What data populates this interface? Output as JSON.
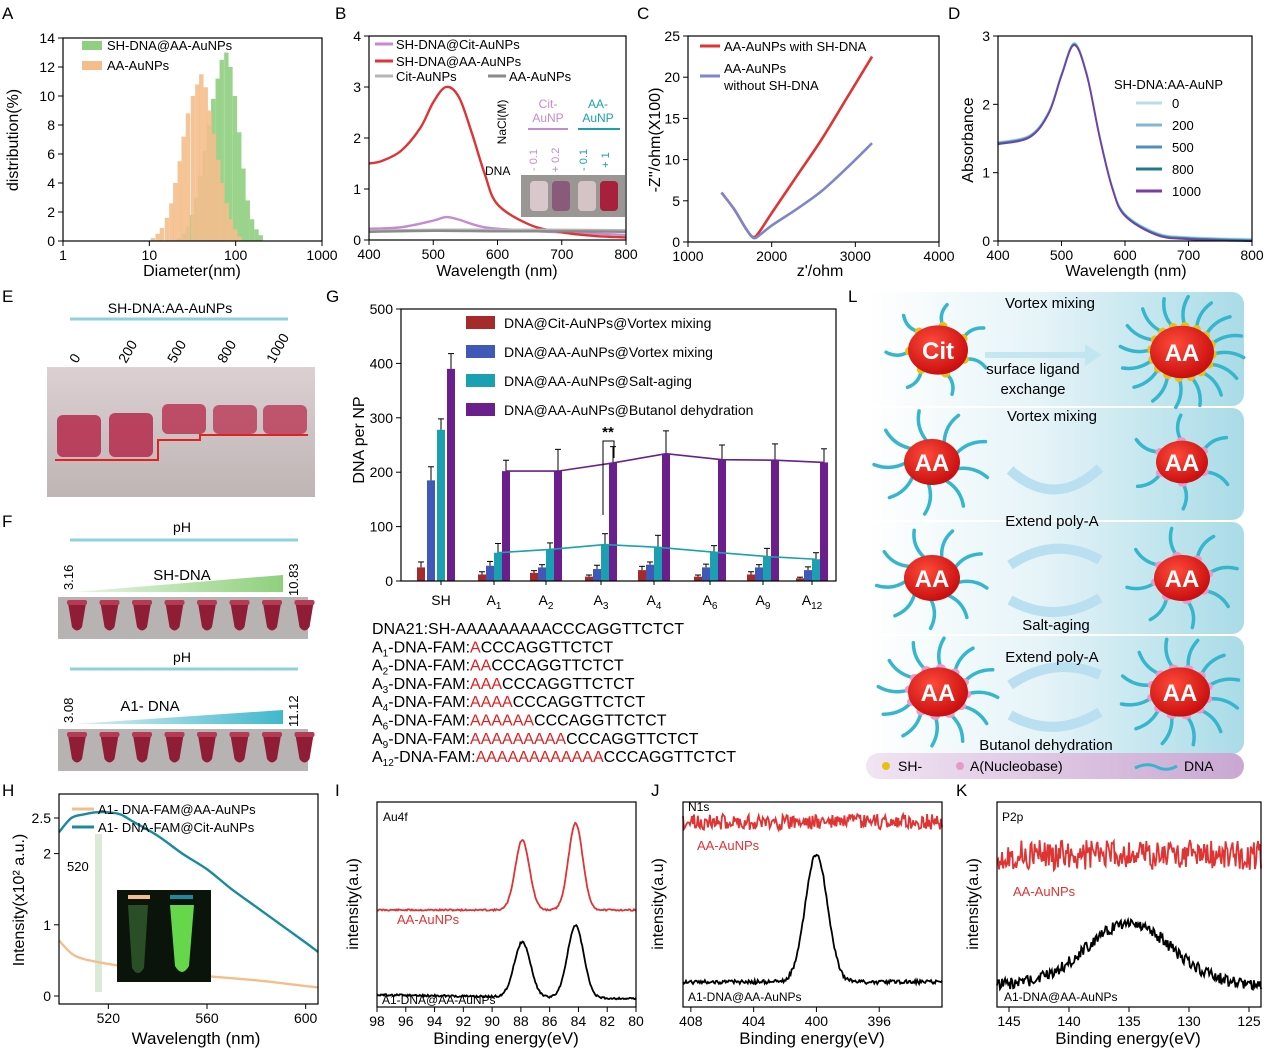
{
  "panels": {
    "A": {
      "letter": "A",
      "ylabel": "distribution(%)",
      "xlabel": "Diameter(nm)",
      "yticks": [
        "0",
        "2",
        "4",
        "6",
        "8",
        "10",
        "12",
        "14"
      ],
      "xticks": [
        "1",
        "10",
        "100",
        "1000"
      ],
      "legend": [
        "SH-DNA@AA-AuNPs",
        "AA-AuNPs"
      ]
    },
    "B": {
      "letter": "B",
      "ylabel": "",
      "xlabel": "Wavelength (nm)",
      "yticks": [
        "0",
        "1",
        "2",
        "3",
        "4"
      ],
      "xticks": [
        "400",
        "500",
        "600",
        "700",
        "800"
      ],
      "legend": [
        "SH-DNA@Cit-AuNPs",
        "SH-DNA@AA-AuNPs",
        "Cit-AuNPs",
        "AA-AuNPs"
      ],
      "inset": {
        "nacl_label": "NaCl(M)",
        "dna_label": "DNA",
        "group1": "Cit-AuNP",
        "group2": "AA-AuNP",
        "nacl_values": [
          "0.1",
          "0.2",
          "0.1",
          "1"
        ],
        "dna_values": [
          "-",
          "+",
          "-",
          "+"
        ]
      }
    },
    "C": {
      "letter": "C",
      "ylabel": "-Z''/ohm(X100)",
      "xlabel": "z'/ohm",
      "yticks": [
        "0",
        "5",
        "10",
        "15",
        "20",
        "25"
      ],
      "xticks": [
        "1000",
        "2000",
        "3000",
        "4000"
      ],
      "legend": [
        "AA-AuNPs with SH-DNA",
        "AA-AuNPs",
        "without SH-DNA"
      ]
    },
    "D": {
      "letter": "D",
      "ylabel": "Absorbance",
      "xlabel": "Wavelength (nm)",
      "yticks": [
        "0",
        "1",
        "2",
        "3"
      ],
      "xticks": [
        "400",
        "500",
        "600",
        "700",
        "800"
      ],
      "legend_title": "SH-DNA:AA-AuNP",
      "legend": [
        "0",
        "200",
        "500",
        "800",
        "1000"
      ]
    },
    "E": {
      "letter": "E",
      "title": "SH-DNA:AA-AuNPs",
      "lanes": [
        "0",
        "200",
        "500",
        "800",
        "1000"
      ]
    },
    "F": {
      "letter": "F",
      "ph1": "pH",
      "row1_label": "SH-DNA",
      "row1_min": "3.16",
      "row1_max": "10.83",
      "ph2": "pH",
      "row2_label": "A1- DNA",
      "row2_min": "3.08",
      "row2_max": "11.12"
    },
    "G": {
      "letter": "G",
      "ylabel": "DNA per NP",
      "sig": "**",
      "legend": [
        "DNA@Cit-AuNPs@Vortex mixing",
        "DNA@AA-AuNPs@Vortex mixing",
        "DNA@AA-AuNPs@Salt-aging",
        "DNA@AA-AuNPs@Butanol dehydration"
      ],
      "yticks": [
        "0",
        "100",
        "200",
        "300",
        "400",
        "500"
      ],
      "sequences": [
        {
          "prefix": "DNA21:SH-",
          "red": "",
          "rest": "AAAAAAAAACCCAGGTTCTCT"
        },
        {
          "prefix": "A1-DNA-FAM:",
          "red": "A",
          "rest": "CCCAGGTTCTCT"
        },
        {
          "prefix": "A2-DNA-FAM:",
          "red": "AA",
          "rest": "CCCAGGTTCTCT"
        },
        {
          "prefix": "A3-DNA-FAM:",
          "red": "AAA",
          "rest": "CCCAGGTTCTCT"
        },
        {
          "prefix": "A4-DNA-FAM:",
          "red": "AAAA",
          "rest": "CCCAGGTTCTCT"
        },
        {
          "prefix": "A6-DNA-FAM:",
          "red": "AAAAAA",
          "rest": "CCCAGGTTCTCT"
        },
        {
          "prefix": "A9-DNA-FAM:",
          "red": "AAAAAAAAA",
          "rest": "CCCAGGTTCTCT"
        },
        {
          "prefix": "A12-DNA-FAM:",
          "red": "AAAAAAAAAAAA",
          "rest": "CCCAGGTTCTCT"
        }
      ]
    },
    "L": {
      "letter": "L",
      "row1_top": "Vortex mixing",
      "row1_mid": "surface ligand",
      "row1_mid2": "exchange",
      "row2_top": "Vortex mixing",
      "row3_top": "Extend poly-A",
      "row3_bottom": "Salt-aging",
      "row4_top": "Extend poly-A",
      "row4_bottom": "Butanol dehydration",
      "cit": "Cit",
      "aa": "AA",
      "legend_sh": "SH-",
      "legend_a": "A(Nucleobase)",
      "legend_dna": "DNA"
    },
    "H": {
      "letter": "H",
      "ylabel": "Intensity(x10² a.u.)",
      "xlabel": "Wavelength (nm)",
      "yticks": [
        "0",
        "1",
        "2",
        "2.5"
      ],
      "xticks": [
        "520",
        "560",
        "600"
      ],
      "legend": [
        "A1- DNA-FAM@AA-AuNPs",
        "A1- DNA-FAM@Cit-AuNPs"
      ],
      "marker": "520"
    },
    "I": {
      "letter": "I",
      "ylabel": "intensity(a.u)",
      "xlabel": "Binding energy(eV)",
      "xticks": [
        "98",
        "96",
        "94",
        "92",
        "90",
        "88",
        "86",
        "84",
        "82",
        "80"
      ],
      "tag": "Au4f",
      "label_top": "AA-AuNPs",
      "label_bottom": "A1-DNA@AA-AuNPs"
    },
    "J": {
      "letter": "J",
      "ylabel": "intensity(a.u)",
      "xlabel": "Binding energy(eV)",
      "xticks": [
        "408",
        "404",
        "400",
        "396"
      ],
      "tag": "N1s",
      "label_top": "AA-AuNPs",
      "label_bottom": "A1-DNA@AA-AuNPs"
    },
    "K": {
      "letter": "K",
      "ylabel": "intensity(a.u)",
      "xlabel": "Binding energy(eV)",
      "xticks": [
        "145",
        "140",
        "135",
        "130",
        "125"
      ],
      "tag": "P2p",
      "label_top": "AA-AuNPs",
      "label_bottom": "A1-DNA@AA-AuNPs"
    }
  },
  "colors": {
    "green": "#8fcf7f",
    "orange": "#f4be8c",
    "purple": "#c58ad0",
    "red": "#e03333",
    "gray": "#b5b5b5",
    "darkgray": "#8a8a8a",
    "blue_line": "#7d86c8",
    "teal": "#1aa0b0",
    "darkred": "#a52a2a",
    "navy": "#4058b8",
    "violet": "#6a1f8c"
  },
  "chart_data": [
    {
      "type": "bar",
      "panel": "A",
      "xlabel": "Diameter(nm)",
      "ylabel": "distribution(%)",
      "xscale": "log",
      "xlim": [
        1,
        1000
      ],
      "ylim": [
        0,
        14
      ],
      "series": [
        {
          "name": "SH-DNA@AA-AuNPs",
          "x": [
            22,
            25,
            28,
            31,
            35,
            39,
            44,
            49,
            55,
            62,
            69,
            78,
            87,
            98,
            110,
            123,
            138,
            155,
            174,
            195
          ],
          "values": [
            0.2,
            0.5,
            1.0,
            1.8,
            3.0,
            4.5,
            6.2,
            8.0,
            9.8,
            11.2,
            12.5,
            13.0,
            12.0,
            10.0,
            7.5,
            5.0,
            2.8,
            1.5,
            0.8,
            0.4
          ]
        },
        {
          "name": "AA-AuNPs",
          "x": [
            11,
            12.5,
            14,
            16,
            18,
            20,
            22.5,
            25,
            28,
            32,
            36,
            40,
            45,
            50,
            56,
            63,
            70,
            79,
            88,
            99,
            111
          ],
          "values": [
            0.2,
            0.5,
            0.9,
            1.6,
            2.6,
            4.0,
            5.5,
            7.2,
            8.8,
            10.0,
            10.8,
            11.5,
            10.6,
            9.0,
            7.4,
            5.6,
            4.0,
            2.6,
            1.5,
            0.8,
            0.3
          ]
        }
      ]
    },
    {
      "type": "line",
      "panel": "B",
      "xlabel": "Wavelength (nm)",
      "xlim": [
        400,
        800
      ],
      "ylim": [
        0,
        4
      ],
      "series": [
        {
          "name": "SH-DNA@Cit-AuNPs",
          "x": [
            400,
            450,
            500,
            520,
            540,
            580,
            650,
            700,
            800
          ],
          "values": [
            0.22,
            0.25,
            0.38,
            0.45,
            0.4,
            0.25,
            0.18,
            0.15,
            0.1
          ]
        },
        {
          "name": "SH-DNA@AA-AuNPs",
          "x": [
            400,
            420,
            450,
            480,
            500,
            520,
            540,
            560,
            580,
            600,
            650,
            700,
            750,
            800
          ],
          "values": [
            1.5,
            1.55,
            1.75,
            2.2,
            2.7,
            3.0,
            2.8,
            2.1,
            1.3,
            0.7,
            0.3,
            0.15,
            0.08,
            0.05
          ]
        },
        {
          "name": "Cit-AuNPs",
          "x": [
            400,
            500,
            600,
            700,
            800
          ],
          "values": [
            0.18,
            0.2,
            0.2,
            0.2,
            0.19
          ]
        },
        {
          "name": "AA-AuNPs",
          "x": [
            400,
            500,
            600,
            700,
            800
          ],
          "values": [
            0.16,
            0.18,
            0.17,
            0.17,
            0.16
          ]
        }
      ]
    },
    {
      "type": "line",
      "panel": "C",
      "xlabel": "z'/ohm",
      "ylabel": "-Z''/ohm(X100)",
      "xlim": [
        1000,
        4000
      ],
      "ylim": [
        0,
        25
      ],
      "series": [
        {
          "name": "AA-AuNPs with SH-DNA",
          "x": [
            1400,
            1550,
            1700,
            1780,
            1850,
            2000,
            2300,
            2600,
            2900,
            3200
          ],
          "values": [
            6,
            4,
            1.5,
            0.6,
            1.2,
            3.5,
            8,
            12.5,
            17.5,
            22.5
          ]
        },
        {
          "name": "AA-AuNPs without SH-DNA",
          "x": [
            1400,
            1550,
            1700,
            1780,
            1850,
            2000,
            2300,
            2600,
            2900,
            3200
          ],
          "values": [
            6,
            4,
            1.5,
            0.5,
            0.8,
            2,
            4,
            6.2,
            9,
            12
          ]
        }
      ]
    },
    {
      "type": "line",
      "panel": "D",
      "xlabel": "Wavelength (nm)",
      "ylabel": "Absorbance",
      "xlim": [
        400,
        800
      ],
      "ylim": [
        0,
        3
      ],
      "series": [
        {
          "name": "0",
          "x": [
            400,
            450,
            480,
            500,
            520,
            540,
            560,
            580,
            600,
            650,
            700,
            800
          ],
          "values": [
            1.45,
            1.55,
            1.9,
            2.45,
            2.9,
            2.45,
            1.55,
            0.8,
            0.4,
            0.12,
            0.06,
            0.03
          ]
        },
        {
          "name": "200",
          "x": [
            400,
            450,
            480,
            500,
            520,
            540,
            560,
            580,
            600,
            650,
            700,
            800
          ],
          "values": [
            1.45,
            1.55,
            1.9,
            2.45,
            2.9,
            2.45,
            1.55,
            0.8,
            0.4,
            0.12,
            0.06,
            0.03
          ]
        },
        {
          "name": "500",
          "x": [
            400,
            450,
            480,
            500,
            520,
            540,
            560,
            580,
            600,
            650,
            700,
            800
          ],
          "values": [
            1.45,
            1.55,
            1.9,
            2.45,
            2.9,
            2.45,
            1.55,
            0.8,
            0.4,
            0.12,
            0.06,
            0.03
          ]
        },
        {
          "name": "800",
          "x": [
            400,
            450,
            480,
            500,
            520,
            540,
            560,
            580,
            600,
            650,
            700,
            800
          ],
          "values": [
            1.45,
            1.55,
            1.9,
            2.45,
            2.9,
            2.45,
            1.55,
            0.8,
            0.4,
            0.12,
            0.06,
            0.03
          ]
        },
        {
          "name": "1000",
          "x": [
            400,
            450,
            480,
            500,
            520,
            540,
            560,
            580,
            600,
            650,
            700,
            800
          ],
          "values": [
            1.45,
            1.55,
            1.9,
            2.45,
            2.9,
            2.45,
            1.55,
            0.8,
            0.4,
            0.12,
            0.06,
            0.03
          ]
        }
      ]
    },
    {
      "type": "bar",
      "panel": "G",
      "ylabel": "DNA per NP",
      "ylim": [
        0,
        500
      ],
      "categories": [
        "SH",
        "A1",
        "A2",
        "A3",
        "A4",
        "A6",
        "A9",
        "A12"
      ],
      "series": [
        {
          "name": "DNA@Cit-AuNPs@Vortex mixing",
          "values": [
            25,
            12,
            15,
            8,
            20,
            8,
            12,
            5
          ],
          "errors": [
            10,
            5,
            4,
            3,
            7,
            3,
            5,
            2
          ]
        },
        {
          "name": "DNA@AA-AuNPs@Vortex mixing",
          "values": [
            185,
            28,
            25,
            22,
            30,
            25,
            25,
            20
          ],
          "errors": [
            25,
            8,
            5,
            7,
            5,
            6,
            5,
            6
          ]
        },
        {
          "name": "DNA@AA-AuNPs@Salt-aging",
          "values": [
            278,
            52,
            58,
            67,
            62,
            53,
            45,
            40
          ],
          "errors": [
            20,
            17,
            12,
            20,
            22,
            12,
            15,
            12
          ]
        },
        {
          "name": "DNA@AA-AuNPs@Butanol dehydration",
          "values": [
            390,
            202,
            202,
            217,
            234,
            223,
            222,
            218
          ],
          "errors": [
            28,
            20,
            40,
            30,
            42,
            27,
            30,
            25
          ]
        }
      ]
    },
    {
      "type": "line",
      "panel": "H",
      "xlabel": "Wavelength (nm)",
      "xlim": [
        500,
        605
      ],
      "ylim": [
        0,
        2.5
      ],
      "series": [
        {
          "name": "A1- DNA-FAM@AA-AuNPs",
          "x": [
            500,
            505,
            510,
            520,
            530,
            540,
            560,
            580,
            600,
            605
          ],
          "values": [
            0.78,
            0.6,
            0.52,
            0.45,
            0.4,
            0.36,
            0.28,
            0.22,
            0.14,
            0.12
          ]
        },
        {
          "name": "A1- DNA-FAM@Cit-AuNPs",
          "x": [
            500,
            505,
            510,
            515,
            520,
            525,
            530,
            540,
            550,
            560,
            570,
            580,
            590,
            600,
            605
          ],
          "values": [
            2.3,
            2.5,
            2.55,
            2.58,
            2.58,
            2.55,
            2.45,
            2.25,
            2.0,
            1.78,
            1.5,
            1.25,
            1.0,
            0.75,
            0.62
          ]
        }
      ]
    },
    {
      "type": "line",
      "panel": "I",
      "xlabel": "Binding energy(eV)",
      "xlim": [
        98,
        80
      ],
      "series": [
        {
          "name": "AA-AuNPs",
          "peaks": [
            87.9,
            84.2
          ]
        },
        {
          "name": "A1-DNA@AA-AuNPs",
          "peaks": [
            87.9,
            84.2
          ]
        }
      ]
    },
    {
      "type": "line",
      "panel": "J",
      "xlabel": "Binding energy(eV)",
      "xlim": [
        408,
        392
      ],
      "series": [
        {
          "name": "AA-AuNPs",
          "peaks": []
        },
        {
          "name": "A1-DNA@AA-AuNPs",
          "peaks": [
            400
          ]
        }
      ]
    },
    {
      "type": "line",
      "panel": "K",
      "xlabel": "Binding energy(eV)",
      "xlim": [
        145,
        124
      ],
      "series": [
        {
          "name": "AA-AuNPs",
          "peaks": []
        },
        {
          "name": "A1-DNA@AA-AuNPs",
          "peaks": [
            135
          ]
        }
      ]
    }
  ]
}
